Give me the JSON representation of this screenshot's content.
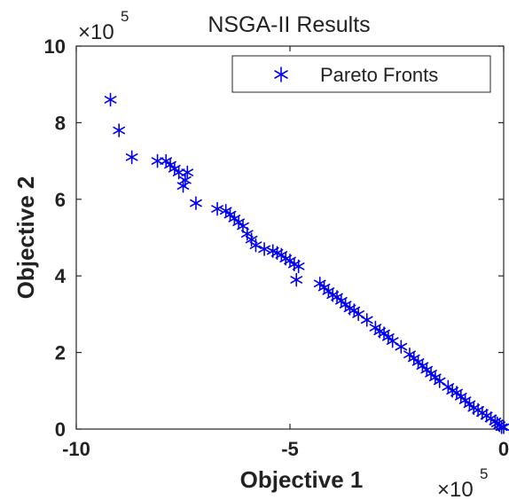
{
  "chart_data": {
    "type": "scatter",
    "title": "NSGA-II Results",
    "xlabel": "Objective 1",
    "ylabel": "Objective 2",
    "x_exponent": "×10",
    "x_exponent_power": "5",
    "y_exponent": "×10",
    "y_exponent_power": "5",
    "xlim": [
      -10,
      0
    ],
    "ylim": [
      0,
      10
    ],
    "x_ticks": [
      -10,
      -5,
      0
    ],
    "y_ticks": [
      0,
      2,
      4,
      6,
      8,
      10
    ],
    "x_tick_labels": [
      "-10",
      "-5",
      "0"
    ],
    "y_tick_labels": [
      "0",
      "2",
      "4",
      "6",
      "8",
      "10"
    ],
    "grid": false,
    "legend_position": "top-right",
    "marker": "asterisk",
    "color": "#0000ee",
    "series": [
      {
        "name": "Pareto Fronts",
        "x": [
          -9.2,
          -9.0,
          -8.7,
          -8.1,
          -7.9,
          -7.8,
          -7.7,
          -7.6,
          -7.5,
          -7.4,
          -7.45,
          -7.2,
          -6.7,
          -6.5,
          -6.4,
          -6.3,
          -6.2,
          -6.1,
          -6.0,
          -5.9,
          -5.8,
          -5.6,
          -5.4,
          -5.3,
          -5.2,
          -5.1,
          -5.0,
          -4.9,
          -4.85,
          -4.8,
          -4.3,
          -4.2,
          -4.1,
          -4.0,
          -3.9,
          -3.8,
          -3.7,
          -3.6,
          -3.5,
          -3.4,
          -3.2,
          -3.0,
          -2.9,
          -2.8,
          -2.7,
          -2.6,
          -2.4,
          -2.2,
          -2.1,
          -2.0,
          -1.9,
          -1.8,
          -1.7,
          -1.6,
          -1.5,
          -1.3,
          -1.2,
          -1.1,
          -1.0,
          -0.9,
          -0.8,
          -0.7,
          -0.6,
          -0.5,
          -0.4,
          -0.3,
          -0.2,
          -0.15,
          -0.1,
          -0.05,
          0.0
        ],
        "y": [
          8.6,
          7.8,
          7.1,
          7.0,
          7.0,
          6.9,
          6.8,
          6.7,
          6.35,
          6.7,
          6.5,
          5.9,
          5.75,
          5.7,
          5.6,
          5.5,
          5.4,
          5.3,
          5.1,
          4.95,
          4.8,
          4.7,
          4.65,
          4.6,
          4.55,
          4.45,
          4.4,
          4.3,
          3.9,
          4.25,
          3.8,
          3.7,
          3.6,
          3.5,
          3.45,
          3.35,
          3.25,
          3.15,
          3.1,
          3.0,
          2.85,
          2.65,
          2.55,
          2.5,
          2.4,
          2.3,
          2.15,
          1.95,
          1.85,
          1.75,
          1.65,
          1.55,
          1.45,
          1.35,
          1.25,
          1.1,
          1.0,
          0.95,
          0.85,
          0.75,
          0.65,
          0.55,
          0.5,
          0.42,
          0.35,
          0.28,
          0.2,
          0.15,
          0.1,
          0.05,
          0.05
        ]
      }
    ]
  }
}
